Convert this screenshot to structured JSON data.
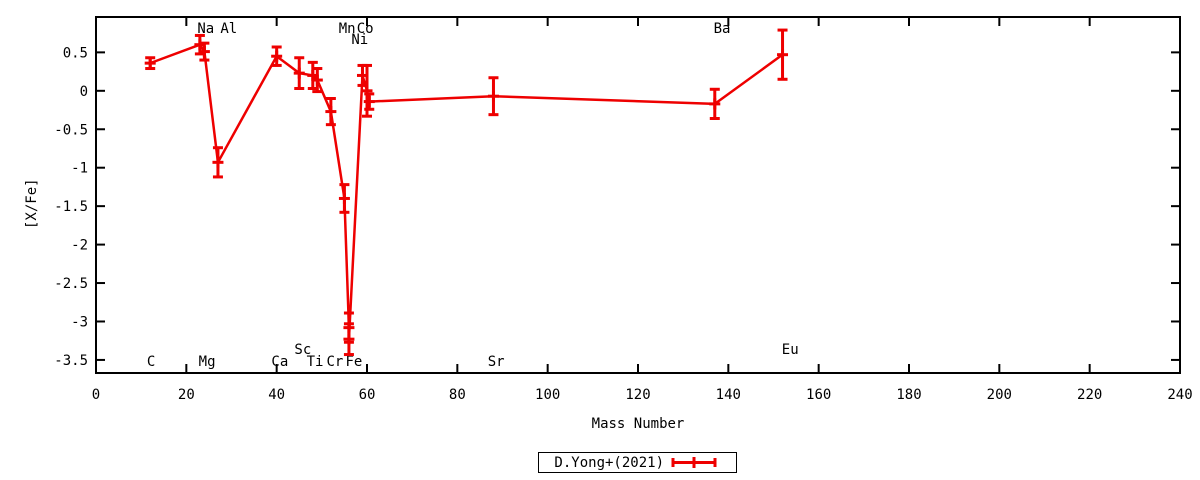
{
  "chart_data": {
    "type": "line",
    "title": "",
    "xlabel": "Mass Number",
    "ylabel": "[X/Fe]",
    "xlim": [
      0,
      240
    ],
    "ylim": [
      -3.67,
      0.96
    ],
    "grid": false,
    "colors": {
      "series": "#ee0000",
      "axis": "#000000",
      "background": "#ffffff"
    },
    "xticks": {
      "values": [
        0,
        20,
        40,
        60,
        80,
        100,
        120,
        140,
        160,
        180,
        200,
        220,
        240
      ],
      "labels": [
        "0",
        "20",
        "40",
        "60",
        "80",
        "100",
        "120",
        "140",
        "160",
        "180",
        "200",
        "220",
        "240"
      ]
    },
    "yticks": {
      "values": [
        0.5,
        0,
        -0.5,
        -1,
        -1.5,
        -2,
        -2.5,
        -3,
        -3.5
      ],
      "labels": [
        "0.5",
        "0",
        "-0.5",
        "-1",
        "-1.5",
        "-2",
        "-2.5",
        "-3",
        "-3.5"
      ]
    },
    "legend": {
      "label": "D.Yong+(2021)",
      "position": "below-plot-center",
      "marker": "red-errorbar-line"
    },
    "series": [
      {
        "name": "D.Yong+(2021)",
        "color": "#ee0000",
        "style": "linespoints-with-yerrorbars",
        "points": [
          {
            "element": "C",
            "mass": 12,
            "value": 0.36,
            "err": 0.07
          },
          {
            "element": "Na",
            "mass": 23,
            "value": 0.6,
            "err": 0.12
          },
          {
            "element": "Mg",
            "mass": 24,
            "value": 0.51,
            "err": 0.11
          },
          {
            "element": "Al",
            "mass": 27,
            "value": -0.93,
            "err": 0.19
          },
          {
            "element": "Ca",
            "mass": 40,
            "value": 0.45,
            "err": 0.12
          },
          {
            "element": "Sc",
            "mass": 45,
            "value": 0.23,
            "err": 0.2
          },
          {
            "element": "Ti",
            "mass": 48,
            "value": 0.2,
            "err": 0.17
          },
          {
            "element": "Ti",
            "mass": 49,
            "value": 0.14,
            "err": 0.15
          },
          {
            "element": "Cr",
            "mass": 52,
            "value": -0.27,
            "err": 0.17
          },
          {
            "element": "Mn",
            "mass": 55,
            "value": -1.4,
            "err": 0.18
          },
          {
            "element": "Fe",
            "mass": 56,
            "value": -3.08,
            "err": 0.19
          },
          {
            "element": "Fe",
            "mass": 56,
            "value": -3.23,
            "err": 0.2
          },
          {
            "element": "Co",
            "mass": 59,
            "value": 0.2,
            "err": 0.13
          },
          {
            "element": "Ni",
            "mass": 60,
            "value": 0.0,
            "err": 0.33
          },
          {
            "element": "Ni",
            "mass": 60.5,
            "value": -0.14,
            "err": 0.1
          },
          {
            "element": "Sr",
            "mass": 88,
            "value": -0.07,
            "err": 0.24
          },
          {
            "element": "Ba",
            "mass": 137,
            "value": -0.17,
            "err": 0.19
          },
          {
            "element": "Eu",
            "mass": 152,
            "value": 0.47,
            "err": 0.32
          }
        ]
      }
    ],
    "element_labels": [
      {
        "text": "C",
        "mass": 12.2,
        "row": "bottom"
      },
      {
        "text": "Na",
        "mass": 24.3,
        "row": "top"
      },
      {
        "text": "Al",
        "mass": 29.4,
        "row": "top"
      },
      {
        "text": "Mg",
        "mass": 24.6,
        "row": "bottom"
      },
      {
        "text": "Ca",
        "mass": 40.7,
        "row": "bottom"
      },
      {
        "text": "Sc",
        "mass": 45.8,
        "row": "bottom2"
      },
      {
        "text": "Ti",
        "mass": 48.5,
        "row": "bottom"
      },
      {
        "text": "Cr",
        "mass": 52.9,
        "row": "bottom"
      },
      {
        "text": "Fe",
        "mass": 57.1,
        "row": "bottom"
      },
      {
        "text": "Mn",
        "mass": 55.6,
        "row": "top"
      },
      {
        "text": "Co",
        "mass": 59.6,
        "row": "top"
      },
      {
        "text": "Ni",
        "mass": 58.4,
        "row": "top2"
      },
      {
        "text": "Sr",
        "mass": 88.6,
        "row": "bottom"
      },
      {
        "text": "Ba",
        "mass": 138.6,
        "row": "top"
      },
      {
        "text": "Eu",
        "mass": 153.7,
        "row": "bottom2"
      }
    ]
  }
}
